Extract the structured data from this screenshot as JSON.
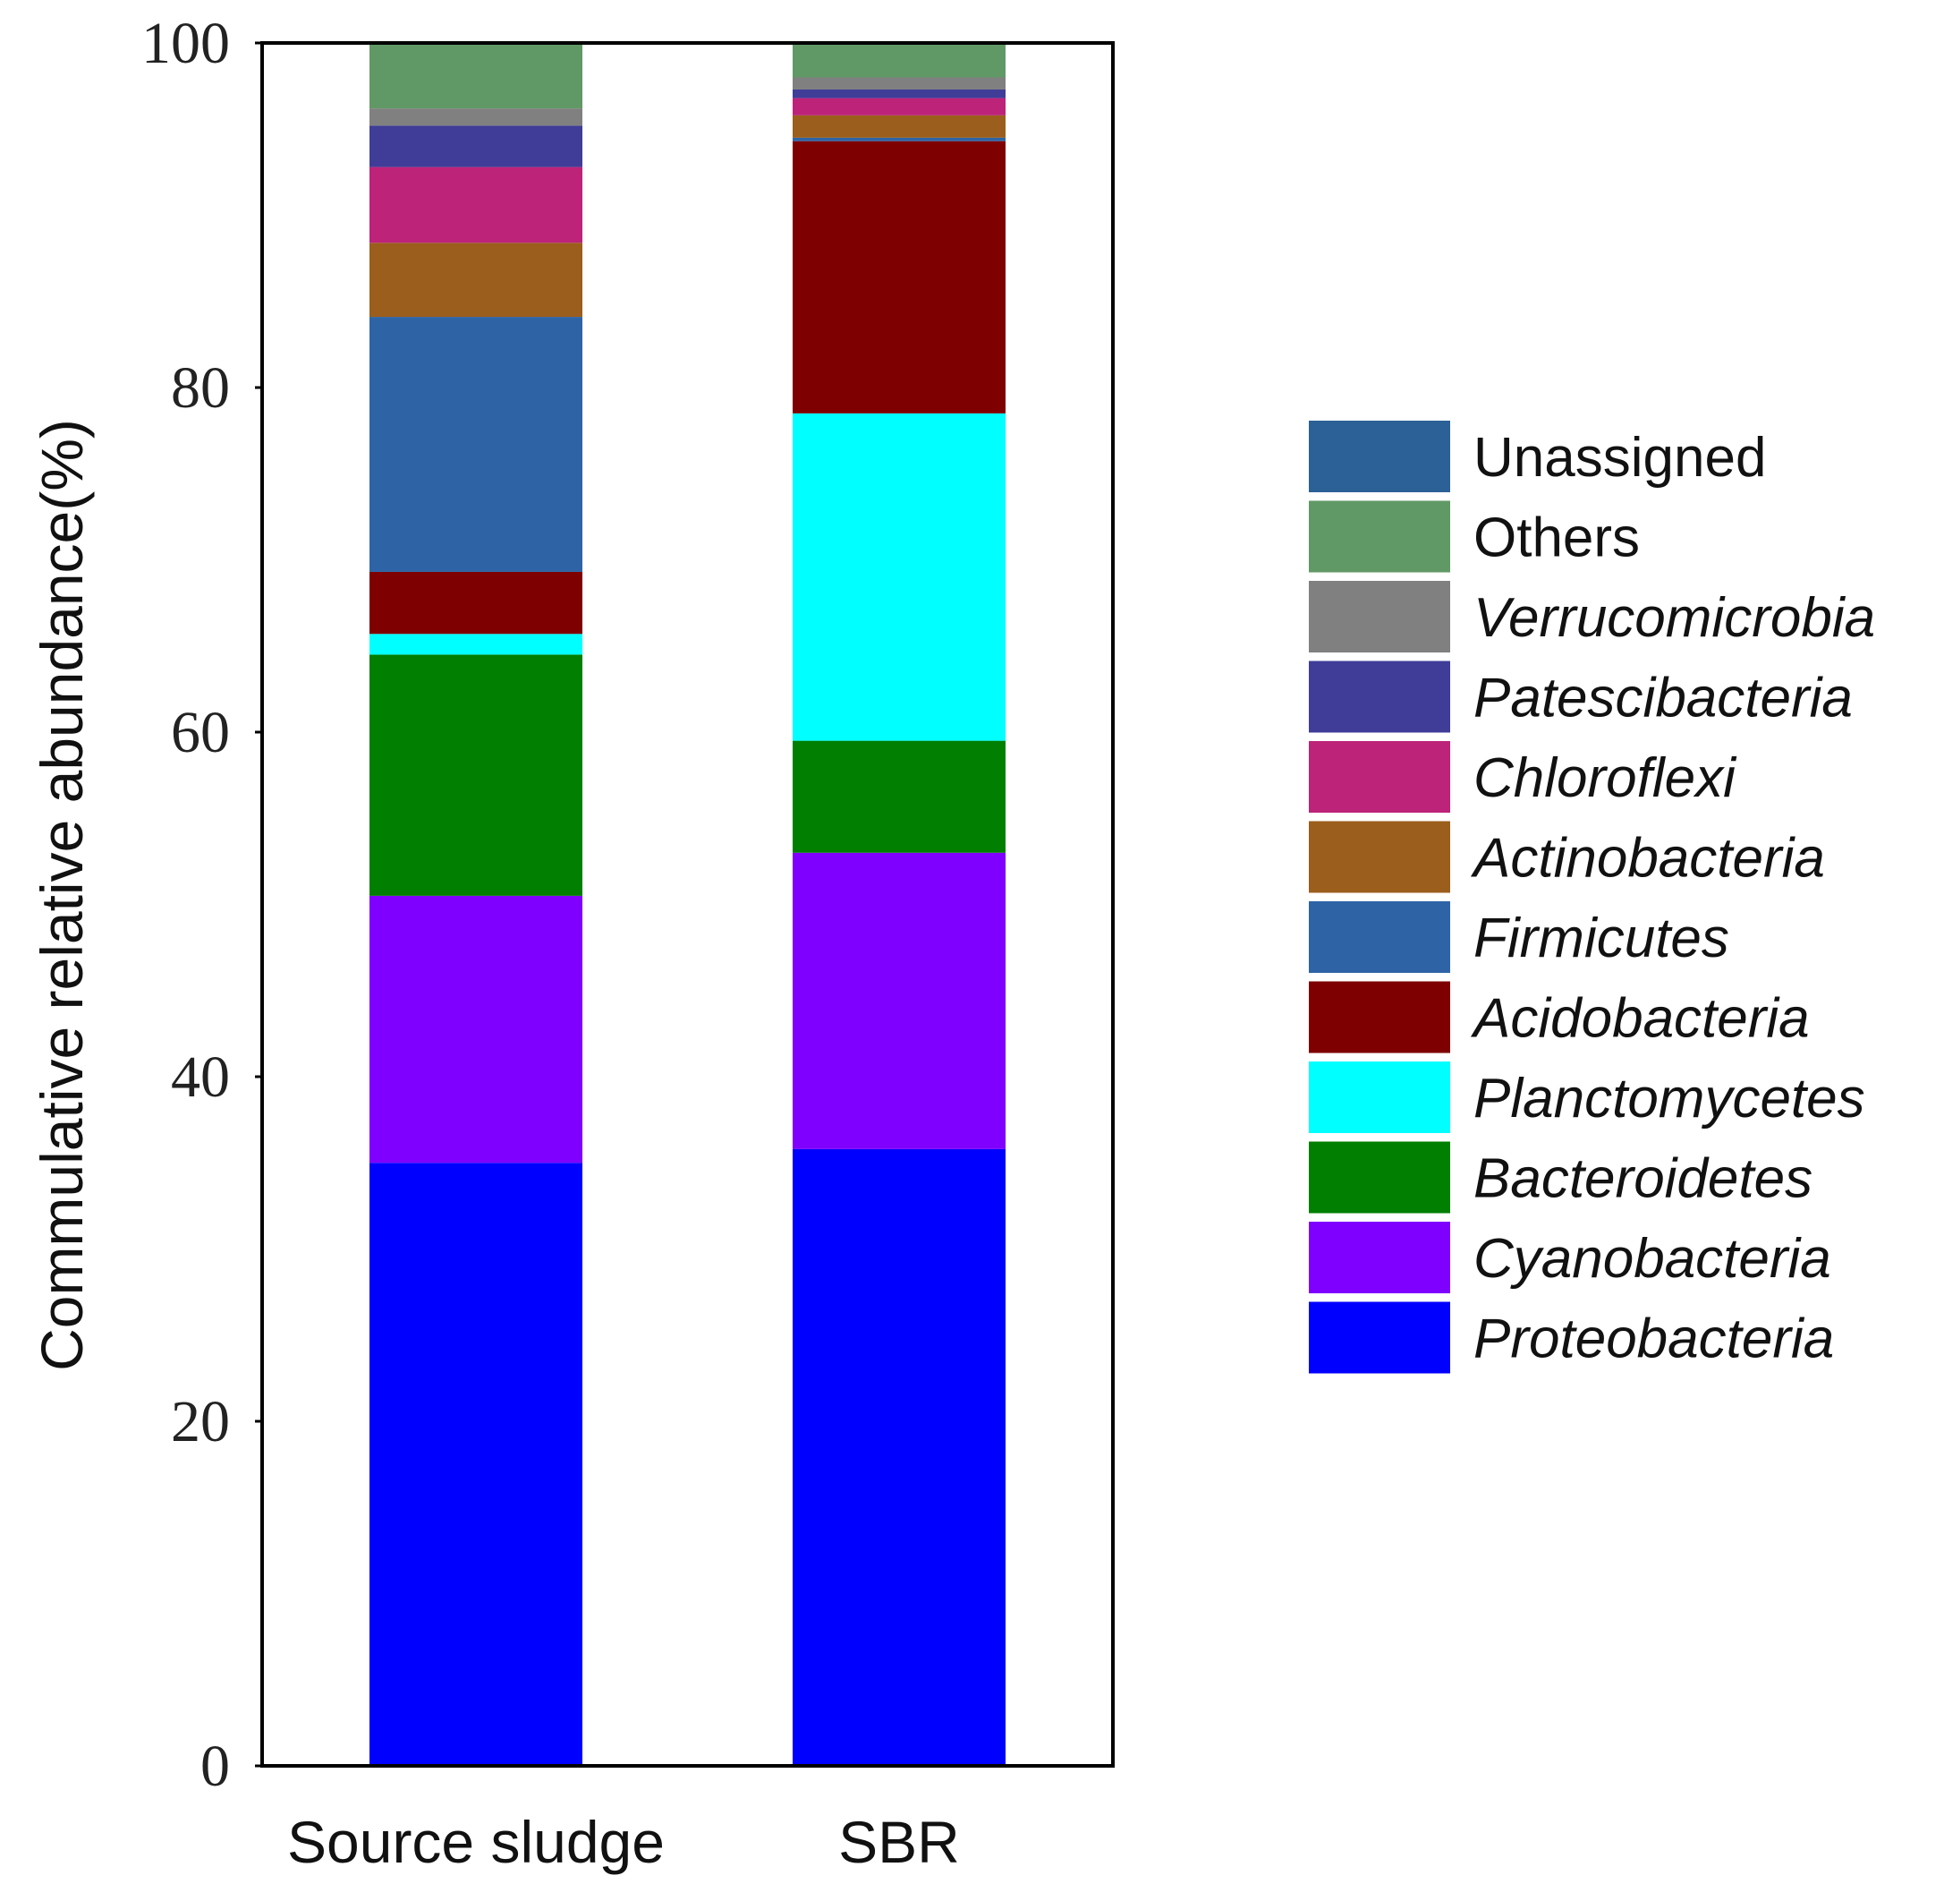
{
  "chart_data": {
    "type": "bar",
    "stacked": true,
    "title": "",
    "xlabel": "",
    "ylabel": "Commulative relative abundance(%)",
    "ylim": [
      0,
      100
    ],
    "yticks": [
      0,
      20,
      40,
      60,
      80,
      100
    ],
    "categories": [
      "Source sludge",
      "SBR"
    ],
    "legend_position": "right",
    "series": [
      {
        "name": "Proteobacteria",
        "italic": true,
        "color": "#0000FF",
        "values": [
          35.0,
          35.8
        ]
      },
      {
        "name": "Cyanobacteria",
        "italic": true,
        "color": "#7F00FF",
        "values": [
          15.5,
          17.2
        ]
      },
      {
        "name": "Bacteroidetes",
        "italic": true,
        "color": "#007F00",
        "values": [
          14.0,
          6.5
        ]
      },
      {
        "name": "Planctomycetes",
        "italic": true,
        "color": "#00FFFF",
        "values": [
          1.2,
          19.0
        ]
      },
      {
        "name": "Acidobacteria",
        "italic": true,
        "color": "#7F0000",
        "values": [
          3.6,
          15.8
        ]
      },
      {
        "name": "Firmicutes",
        "italic": true,
        "color": "#2E64A6",
        "values": [
          14.8,
          0.2
        ]
      },
      {
        "name": "Actinobacteria",
        "italic": true,
        "color": "#9B5E1C",
        "values": [
          4.3,
          1.3
        ]
      },
      {
        "name": "Chloroflexi",
        "italic": true,
        "color": "#BC2379",
        "values": [
          4.4,
          1.0
        ]
      },
      {
        "name": "Patescibacteria",
        "italic": true,
        "color": "#3F3D98",
        "values": [
          2.4,
          0.5
        ]
      },
      {
        "name": "Verrucomicrobia",
        "italic": true,
        "color": "#808080",
        "values": [
          1.0,
          0.7
        ]
      },
      {
        "name": "Others",
        "italic": false,
        "color": "#619966",
        "values": [
          3.8,
          2.0
        ]
      },
      {
        "name": "Unassigned",
        "italic": false,
        "color": "#2C6197",
        "values": [
          0.0,
          0.0
        ]
      }
    ]
  }
}
